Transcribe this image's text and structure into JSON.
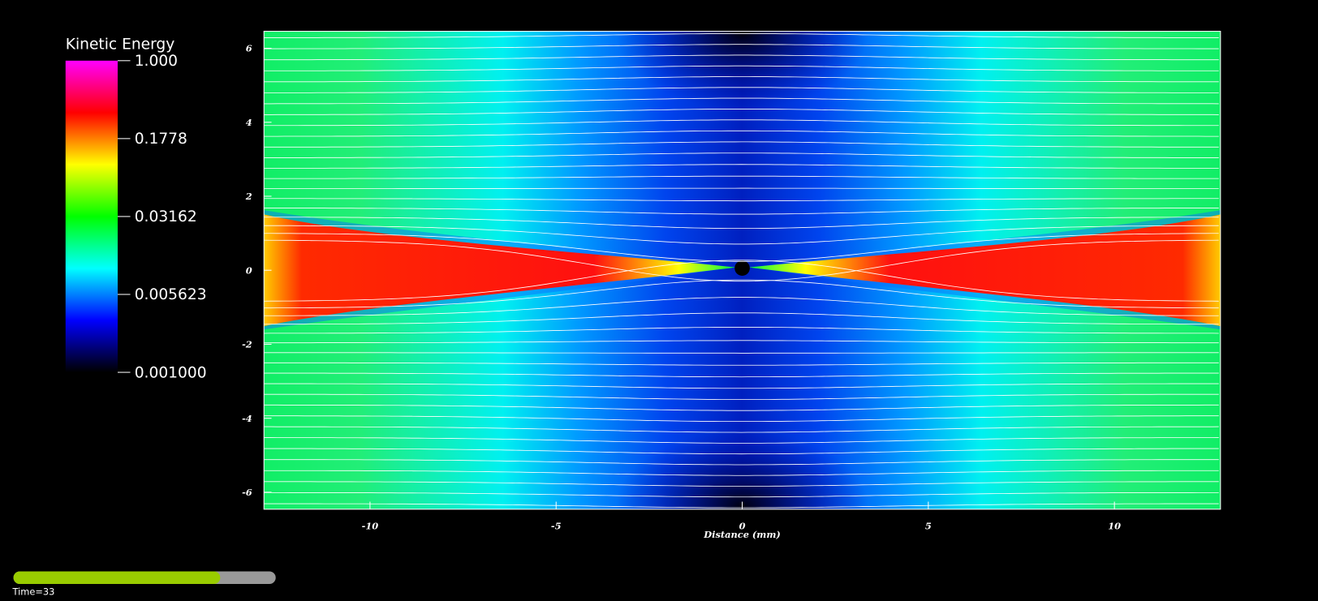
{
  "chart_data": {
    "type": "pseudocolor",
    "xlabel": "Distance (mm)",
    "xlim": [
      -12.85,
      12.85
    ],
    "ylim": [
      -6.46,
      6.46
    ],
    "xticks": [
      -10,
      -5,
      0,
      5,
      10
    ],
    "yticks": [
      -6,
      -4,
      -2,
      0,
      2,
      4,
      6
    ],
    "colorbar": {
      "title": "Kinetic Energy",
      "scale": "log",
      "lim": [
        0.001,
        1
      ],
      "ticks": [
        {
          "value": 1,
          "label": "1.000"
        },
        {
          "value": 0.1778,
          "label": "0.1778"
        },
        {
          "value": 0.03162,
          "label": "0.03162"
        },
        {
          "value": 0.005623,
          "label": "0.005623"
        },
        {
          "value": 0.001,
          "label": "0.001000"
        }
      ],
      "colors": [
        "#000000",
        "#0000ff",
        "#00ffff",
        "#00ff00",
        "#ffff00",
        "#ff0000",
        "#ff00ff"
      ]
    },
    "time_label": "Time=33"
  }
}
